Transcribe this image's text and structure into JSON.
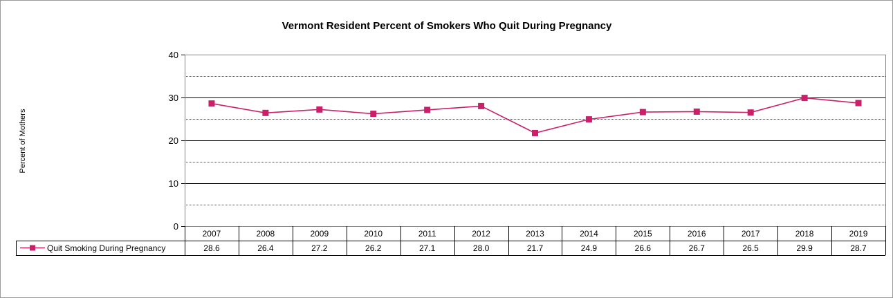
{
  "chart_data": {
    "type": "line",
    "title": "Vermont Resident Percent of Smokers Who Quit During Pregnancy",
    "ylabel": "Percent of Mothers",
    "xlabel": "",
    "ylim": [
      0,
      40
    ],
    "yticks": [
      "0",
      "10",
      "20",
      "30",
      "40"
    ],
    "categories": [
      "2007",
      "2008",
      "2009",
      "2010",
      "2011",
      "2012",
      "2013",
      "2014",
      "2015",
      "2016",
      "2017",
      "2018",
      "2019"
    ],
    "series": [
      {
        "name": "Quit Smoking During Pregnancy",
        "values": [
          28.6,
          26.4,
          27.2,
          26.2,
          27.1,
          28.0,
          21.7,
          24.9,
          26.6,
          26.7,
          26.5,
          29.9,
          28.7
        ],
        "labels": [
          "28.6",
          "26.4",
          "27.2",
          "26.2",
          "27.1",
          "28.0",
          "21.7",
          "24.9",
          "26.6",
          "26.7",
          "26.5",
          "29.9",
          "28.7"
        ],
        "color": "#cc1f6a"
      }
    ],
    "grid": true,
    "legend": "data-table-left"
  }
}
